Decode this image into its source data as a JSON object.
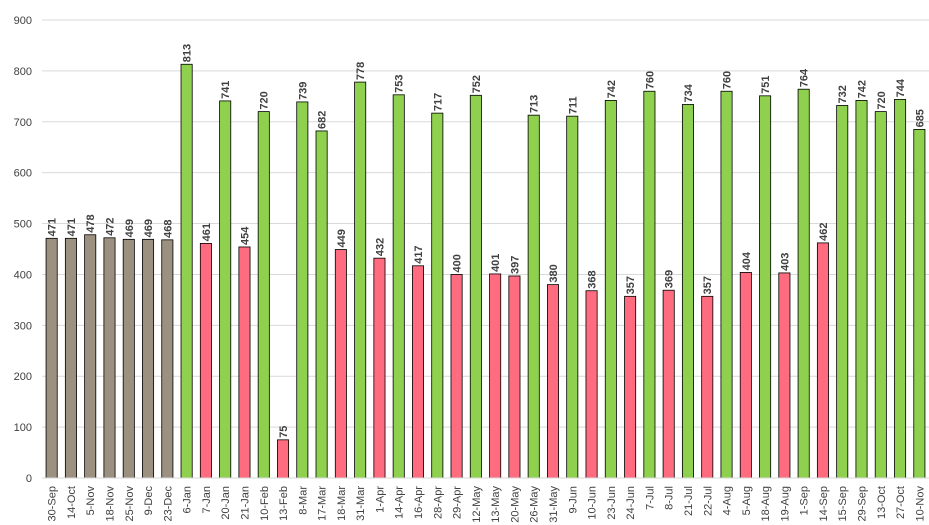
{
  "chart_data": {
    "type": "bar",
    "title": "",
    "xlabel": "",
    "ylabel": "",
    "ylim": [
      0,
      900
    ],
    "y_ticks": [
      0,
      100,
      200,
      300,
      400,
      500,
      600,
      700,
      800,
      900
    ],
    "grid": true,
    "legend": "none",
    "colors": {
      "gray": "#9c9181",
      "red": "#ff6b7f",
      "green": "#8fd14f",
      "outline": "#000000",
      "grid": "#d9d9d9",
      "text": "#404040"
    },
    "categories": [
      "30-Sep",
      "14-Oct",
      "5-Nov",
      "18-Nov",
      "25-Nov",
      "9-Dec",
      "23-Dec",
      "6-Jan",
      "7-Jan",
      "20-Jan",
      "21-Jan",
      "10-Feb",
      "13-Feb",
      "8-Mar",
      "17-Mar",
      "18-Mar",
      "31-Mar",
      "1-Apr",
      "14-Apr",
      "16-Apr",
      "28-Apr",
      "29-Apr",
      "12-May",
      "13-May",
      "20-May",
      "26-May",
      "31-May",
      "9-Jun",
      "10-Jun",
      "23-Jun",
      "24-Jun",
      "7-Jul",
      "8-Jul",
      "21-Jul",
      "22-Jul",
      "4-Aug",
      "5-Aug",
      "18-Aug",
      "19-Aug",
      "1-Sep",
      "14-Sep",
      "15-Sep",
      "29-Sep",
      "13-Oct",
      "27-Oct",
      "10-Nov"
    ],
    "values": [
      471,
      471,
      478,
      472,
      469,
      469,
      468,
      813,
      461,
      741,
      454,
      720,
      75,
      739,
      682,
      449,
      778,
      432,
      753,
      417,
      717,
      400,
      752,
      401,
      397,
      713,
      380,
      711,
      368,
      742,
      357,
      760,
      369,
      734,
      357,
      760,
      404,
      751,
      403,
      764,
      462,
      732,
      742,
      720,
      744,
      685
    ],
    "bar_colors": [
      "gray",
      "gray",
      "gray",
      "gray",
      "gray",
      "gray",
      "gray",
      "green",
      "red",
      "green",
      "red",
      "green",
      "red",
      "green",
      "green",
      "red",
      "green",
      "red",
      "green",
      "red",
      "green",
      "red",
      "green",
      "red",
      "red",
      "green",
      "red",
      "green",
      "red",
      "green",
      "red",
      "green",
      "red",
      "green",
      "red",
      "green",
      "red",
      "green",
      "red",
      "green",
      "red",
      "green",
      "green",
      "green",
      "green",
      "green"
    ]
  }
}
